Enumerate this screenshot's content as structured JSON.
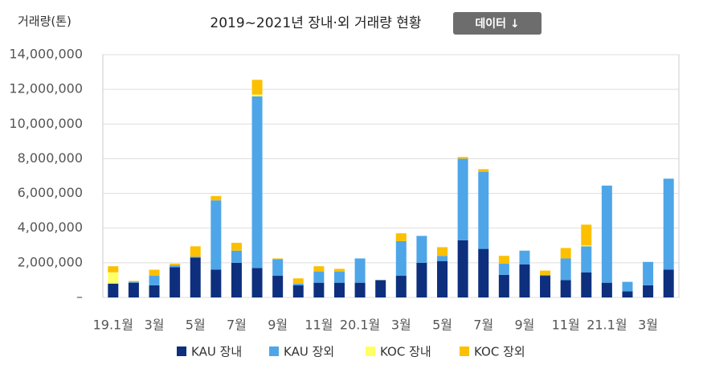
{
  "chart_data": {
    "type": "bar",
    "stacked": true,
    "title": "2019~2021년 장내·외 거래량 현황",
    "y_label": "거래량(톤)",
    "button": "데이터 ↓",
    "categories": [
      "19.1월",
      null,
      "3월",
      null,
      "5월",
      null,
      "7월",
      null,
      "9월",
      null,
      "11월",
      null,
      "20.1월",
      null,
      "3월",
      null,
      "5월",
      null,
      "7월",
      null,
      "9월",
      null,
      "11월",
      null,
      "21.1월",
      null,
      "3월",
      null
    ],
    "series": [
      {
        "name": "KAU 장내",
        "color": "#0d2f7e",
        "values": [
          800000,
          850000,
          700000,
          1750000,
          2300000,
          1600000,
          2000000,
          1700000,
          1250000,
          700000,
          850000,
          850000,
          850000,
          1000000,
          1250000,
          2000000,
          2100000,
          3300000,
          2800000,
          1300000,
          1900000,
          1250000,
          1000000,
          1450000,
          850000,
          350000,
          700000,
          1600000
        ]
      },
      {
        "name": "KAU 장외",
        "color": "#4ea6e8",
        "values": [
          0,
          50000,
          550000,
          100000,
          50000,
          4000000,
          700000,
          9900000,
          950000,
          100000,
          650000,
          650000,
          1400000,
          0,
          2000000,
          1550000,
          300000,
          4700000,
          4450000,
          650000,
          800000,
          50000,
          1250000,
          1500000,
          5600000,
          550000,
          1350000,
          5250000
        ]
      },
      {
        "name": "KOC 장내",
        "color": "#ffff66",
        "values": [
          650000,
          0,
          0,
          0,
          0,
          0,
          0,
          100000,
          0,
          0,
          0,
          0,
          0,
          0,
          0,
          0,
          0,
          0,
          0,
          0,
          0,
          0,
          0,
          50000,
          0,
          0,
          0,
          0
        ]
      },
      {
        "name": "KOC 장외",
        "color": "#fcc000",
        "values": [
          350000,
          50000,
          350000,
          100000,
          600000,
          250000,
          450000,
          850000,
          50000,
          300000,
          300000,
          150000,
          0,
          0,
          450000,
          0,
          500000,
          100000,
          150000,
          450000,
          0,
          250000,
          600000,
          1200000,
          0,
          0,
          0,
          0
        ]
      }
    ],
    "ylim": [
      0,
      14000000
    ],
    "yticks": [
      {
        "value": 0,
        "label": "–"
      },
      {
        "value": 2000000,
        "label": "2,000,000"
      },
      {
        "value": 4000000,
        "label": "4,000,000"
      },
      {
        "value": 6000000,
        "label": "6,000,000"
      },
      {
        "value": 8000000,
        "label": "8,000,000"
      },
      {
        "value": 10000000,
        "label": "10,000,000"
      },
      {
        "value": 12000000,
        "label": "12,000,000"
      },
      {
        "value": 14000000,
        "label": "14,000,000"
      }
    ],
    "grid": true
  }
}
